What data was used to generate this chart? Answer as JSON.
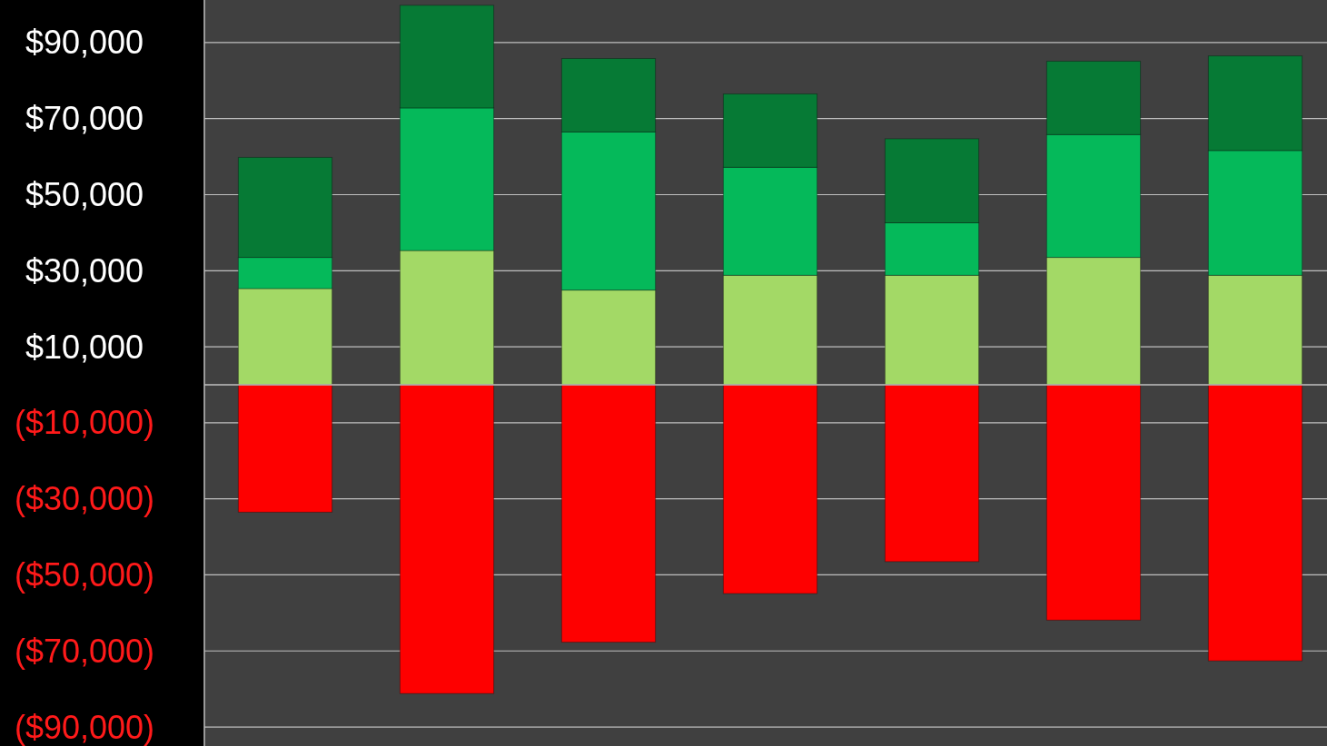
{
  "chart_data": {
    "type": "bar",
    "stacked": true,
    "categories": [
      null,
      null,
      null,
      null,
      null,
      null,
      null
    ],
    "series": [
      {
        "color": "#a3d966",
        "values": [
          25300,
          35300,
          24900,
          28800,
          28800,
          33500,
          28800
        ]
      },
      {
        "color": "#05b95a",
        "values": [
          8200,
          37500,
          41600,
          28400,
          13800,
          32300,
          32800
        ]
      },
      {
        "color": "#067a35",
        "values": [
          26300,
          27000,
          19300,
          19300,
          22100,
          19300,
          24900
        ]
      },
      {
        "color": "#fe0000",
        "values": [
          -33500,
          -81200,
          -67700,
          -54900,
          -46500,
          -61900,
          -72600
        ]
      }
    ],
    "ylim": [
      -95000,
      100000
    ],
    "yticks": [
      {
        "value": 90000,
        "label": "$90,000"
      },
      {
        "value": 70000,
        "label": "$70,000"
      },
      {
        "value": 50000,
        "label": "$50,000"
      },
      {
        "value": 30000,
        "label": "$30,000"
      },
      {
        "value": 10000,
        "label": "$10,000"
      },
      {
        "value": -10000,
        "label": "($10,000)"
      },
      {
        "value": -30000,
        "label": "($30,000)"
      },
      {
        "value": -50000,
        "label": "($50,000)"
      },
      {
        "value": -70000,
        "label": "($70,000)"
      },
      {
        "value": -90000,
        "label": "($90,000)"
      }
    ],
    "grid": "y"
  }
}
